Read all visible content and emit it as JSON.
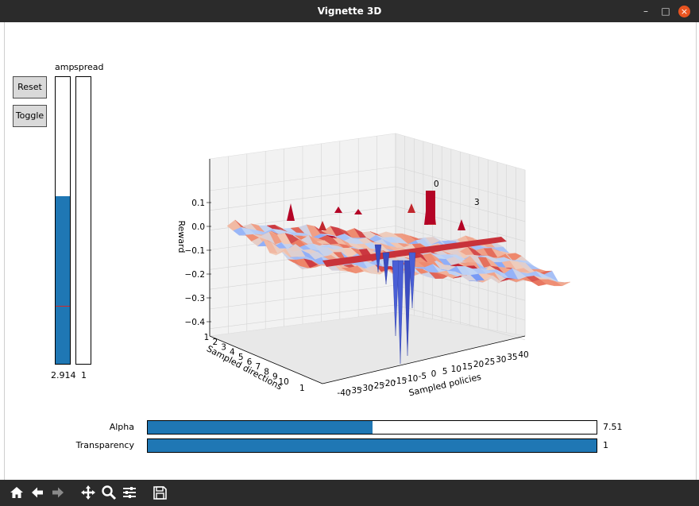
{
  "window": {
    "title": "Vignette 3D",
    "minimize_glyph": "–",
    "maximize_glyph": "□",
    "close_glyph": "×"
  },
  "buttons": {
    "reset_label": "Reset",
    "toggle_label": "Toggle"
  },
  "vsliders": {
    "amp": {
      "label": "amp",
      "value_text": "2.914",
      "fill_fraction": 0.585,
      "marker_fraction": 0.2
    },
    "spread": {
      "label": "spread",
      "value_text": "1",
      "fill_fraction": 0.0
    }
  },
  "hsliders": {
    "alpha": {
      "label": "Alpha",
      "value_text": "7.51",
      "fill_fraction": 0.5
    },
    "transparency": {
      "label": "Transparency",
      "value_text": "1",
      "fill_fraction": 1.0
    }
  },
  "chart_data": {
    "type": "surface",
    "zlabel": "Reward",
    "xlabel": "Sampled policies",
    "ylabel": "Sampled directions",
    "z_ticks": [
      "0.1",
      "0.0",
      "−0.1",
      "−0.2",
      "−0.3",
      "−0.4"
    ],
    "x_ticks": [
      "-40",
      "-35",
      "-30",
      "-25",
      "-20",
      "-15",
      "-10",
      "-5",
      "0",
      "5",
      "10",
      "15",
      "20",
      "25",
      "30",
      "35",
      "40"
    ],
    "y_ticks": [
      "1",
      "2",
      "3",
      "4",
      "5",
      "6",
      "7",
      "8",
      "9",
      "10"
    ],
    "y_extra_tick": "1",
    "annotations": [
      "0",
      "3"
    ],
    "colormap": "coolwarm"
  },
  "toolbar": {
    "icons": [
      "home-icon",
      "back-arrow-icon",
      "forward-arrow-icon",
      "pan-icon",
      "zoom-icon",
      "configure-icon",
      "save-icon"
    ]
  }
}
